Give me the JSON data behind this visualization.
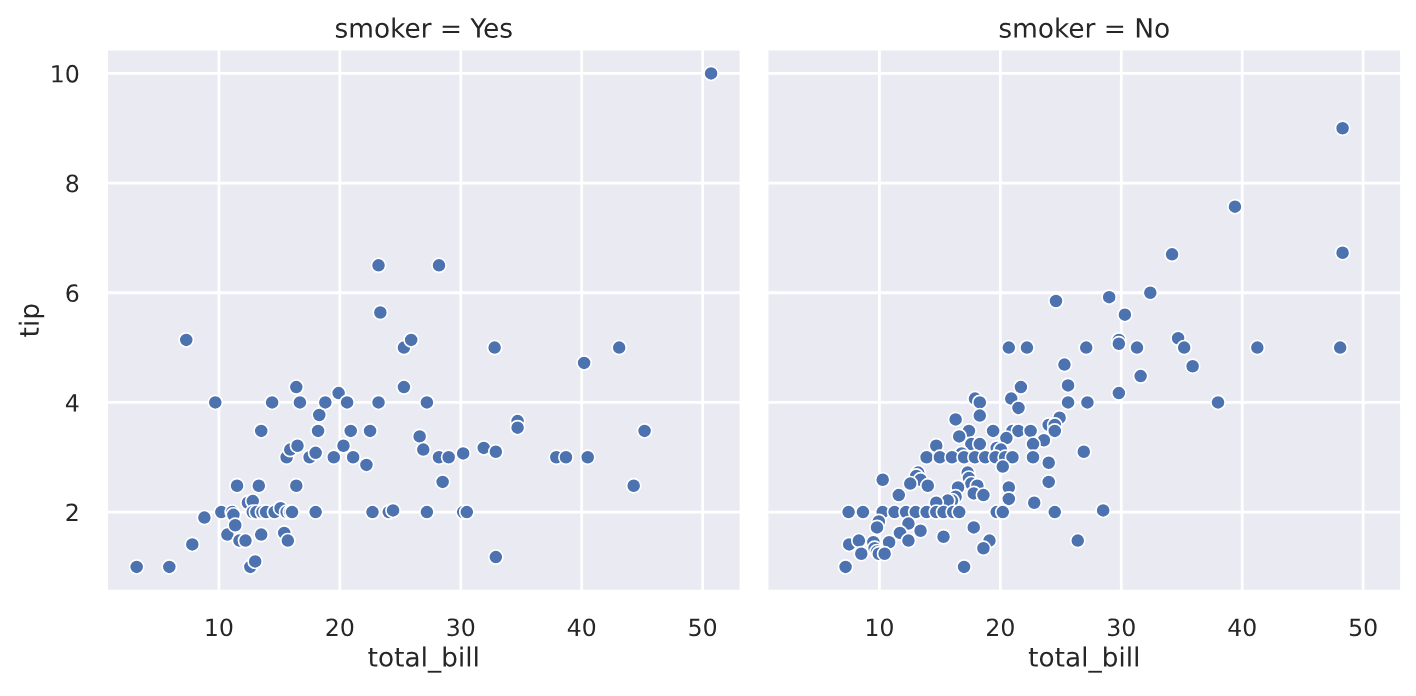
{
  "chart_data": [
    {
      "type": "scatter",
      "title": "smoker = Yes",
      "xlabel": "total_bill",
      "ylabel": "tip",
      "xlim": [
        0.68,
        53.2
      ],
      "ylim": [
        0.55,
        10.45
      ],
      "xticks": [
        10,
        20,
        30,
        40,
        50
      ],
      "yticks": [
        2,
        4,
        6,
        8,
        10
      ],
      "grid": true,
      "marker": "circle",
      "series": [
        {
          "color": "#4c72b0",
          "x": [
            3.2,
            5.9,
            7.8,
            7.3,
            8.8,
            9.7,
            10.2,
            10.7,
            11.1,
            11.2,
            11.35,
            11.5,
            11.7,
            12.2,
            12.4,
            12.8,
            12.6,
            13.0,
            12.8,
            13.1,
            13.6,
            13.9,
            13.3,
            13.5,
            13.5,
            14.4,
            14.6,
            15.1,
            15.4,
            15.6,
            15.9,
            16.05,
            15.7,
            15.6,
            15.9,
            16.4,
            16.4,
            16.5,
            16.7,
            17.5,
            18.0,
            18.0,
            18.2,
            18.3,
            18.8,
            19.5,
            19.9,
            20.3,
            20.6,
            20.9,
            21.1,
            22.2,
            22.5,
            22.7,
            23.2,
            23.35,
            23.2,
            28.2,
            50.7,
            24.05,
            24.4,
            25.3,
            25.3,
            25.9,
            26.6,
            26.9,
            27.2,
            27.2,
            28.2,
            28.5,
            29.0,
            30.2,
            30.2,
            30.5,
            31.9,
            32.8,
            32.9,
            32.9,
            34.7,
            34.7,
            37.9,
            38.7,
            40.2,
            40.5,
            43.1,
            44.3,
            45.2
          ],
          "values": [
            1.0,
            1.0,
            1.41,
            5.14,
            1.9,
            4.0,
            2.0,
            1.59,
            2.0,
            1.95,
            1.76,
            2.48,
            1.48,
            1.48,
            2.17,
            2.2,
            1.0,
            1.1,
            2.0,
            2.0,
            2.0,
            2.0,
            2.48,
            3.48,
            1.59,
            4.0,
            2.0,
            2.07,
            1.62,
            2.0,
            2.0,
            2.0,
            1.48,
            3.0,
            3.14,
            2.48,
            4.28,
            3.21,
            4.0,
            3.0,
            3.08,
            2.0,
            3.48,
            3.77,
            4.0,
            3.0,
            4.17,
            3.21,
            4.0,
            3.48,
            3.0,
            2.86,
            3.48,
            2.0,
            4.0,
            5.64,
            6.5,
            6.5,
            10.0,
            2.0,
            2.03,
            5.0,
            4.28,
            5.14,
            3.38,
            3.14,
            4.0,
            2.0,
            3.0,
            2.55,
            3.0,
            3.07,
            2.0,
            2.0,
            3.17,
            5.0,
            3.1,
            1.18,
            3.66,
            3.54,
            3.0,
            3.0,
            4.72,
            3.0,
            5.0,
            2.48,
            3.48
          ]
        }
      ]
    },
    {
      "type": "scatter",
      "title": "smoker = No",
      "xlabel": "total_bill",
      "xlim": [
        0.68,
        53.2
      ],
      "ylim": [
        0.55,
        10.45
      ],
      "xticks": [
        10,
        20,
        30,
        40,
        50
      ],
      "yticks": [
        2,
        4,
        6,
        8,
        10
      ],
      "grid": true,
      "marker": "circle",
      "tick_labels": "x",
      "series": [
        {
          "color": "#4c72b0",
          "x": [
            48.3,
            39.4,
            48.3,
            34.2,
            24.6,
            29.0,
            30.3,
            32.4,
            20.7,
            22.2,
            27.1,
            29.8,
            29.8,
            31.3,
            34.7,
            35.2,
            41.25,
            48.1,
            25.3,
            35.9,
            31.6,
            25.6,
            21.7,
            29.8,
            20.9,
            17.9,
            18.3,
            25.6,
            27.2,
            38.0,
            21.5,
            18.3,
            16.3,
            24.9,
            24.0,
            24.5,
            24.5,
            17.4,
            16.6,
            19.4,
            21.0,
            21.5,
            22.5,
            20.5,
            23.6,
            22.7,
            17.6,
            18.3,
            14.7,
            19.7,
            20.05,
            16.8,
            26.9,
            13.9,
            15.0,
            16.0,
            17.0,
            17.9,
            18.75,
            19.6,
            20.4,
            21.0,
            22.7,
            24.0,
            20.2,
            13.2,
            13.05,
            17.3,
            17.4,
            13.4,
            24.0,
            12.55,
            14.0,
            17.6,
            18.1,
            16.5,
            20.7,
            10.27,
            11.6,
            17.8,
            18.6,
            20.7,
            16.3,
            16.0,
            15.65,
            14.7,
            22.8,
            7.45,
            8.64,
            10.27,
            11.25,
            12.2,
            13.0,
            13.9,
            14.7,
            15.3,
            16.1,
            16.6,
            19.7,
            20.2,
            24.5,
            28.5,
            9.95,
            9.8,
            17.8,
            12.4,
            13.4,
            11.7,
            15.3,
            7.5,
            8.3,
            9.5,
            10.8,
            12.4,
            19.1,
            26.4,
            9.6,
            9.8,
            8.5,
            9.95,
            10.43,
            18.6,
            7.2,
            17.0
          ],
          "values": [
            9.0,
            7.57,
            6.73,
            6.7,
            5.85,
            5.92,
            5.6,
            6.0,
            5.0,
            5.0,
            5.0,
            5.14,
            5.07,
            5.0,
            5.17,
            5.0,
            5.0,
            5.0,
            4.69,
            4.66,
            4.48,
            4.31,
            4.28,
            4.17,
            4.07,
            4.07,
            4.0,
            4.0,
            4.0,
            4.0,
            3.9,
            3.76,
            3.69,
            3.72,
            3.59,
            3.59,
            3.48,
            3.48,
            3.38,
            3.48,
            3.48,
            3.48,
            3.48,
            3.35,
            3.31,
            3.24,
            3.24,
            3.24,
            3.21,
            3.17,
            3.14,
            3.07,
            3.1,
            3.0,
            3.0,
            3.0,
            3.0,
            3.0,
            3.0,
            3.0,
            3.0,
            3.0,
            3.0,
            2.9,
            2.83,
            2.72,
            2.66,
            2.72,
            2.62,
            2.59,
            2.55,
            2.52,
            2.48,
            2.52,
            2.48,
            2.45,
            2.45,
            2.59,
            2.31,
            2.34,
            2.31,
            2.24,
            2.28,
            2.21,
            2.21,
            2.17,
            2.17,
            2.0,
            2.0,
            2.0,
            2.0,
            2.0,
            2.0,
            2.0,
            2.0,
            2.0,
            2.0,
            2.0,
            2.0,
            2.0,
            2.0,
            2.03,
            1.83,
            1.72,
            1.72,
            1.79,
            1.66,
            1.62,
            1.55,
            1.41,
            1.48,
            1.45,
            1.45,
            1.48,
            1.48,
            1.48,
            1.34,
            1.28,
            1.24,
            1.24,
            1.24,
            1.34,
            1.0,
            1.0
          ]
        }
      ]
    }
  ]
}
